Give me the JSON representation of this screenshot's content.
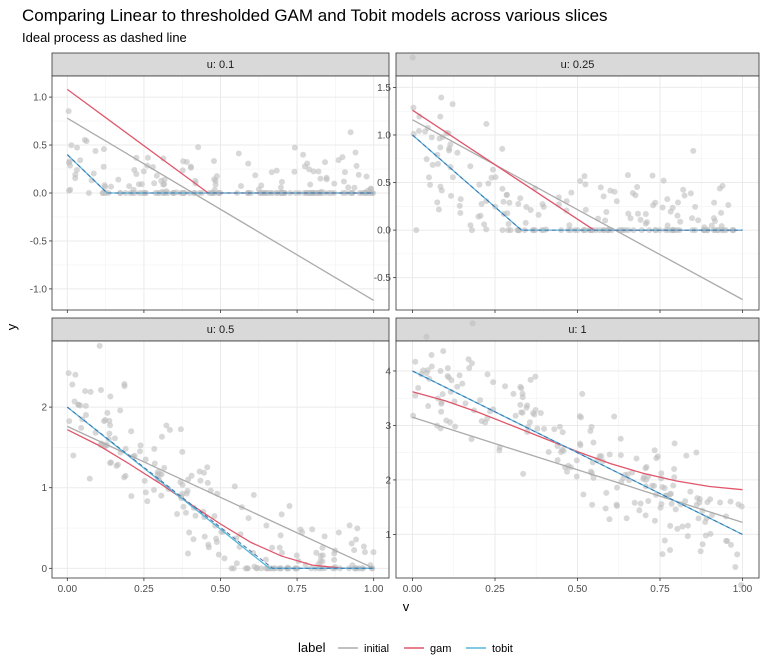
{
  "title": "Comparing Linear to thresholded GAM and Tobit models across various slices",
  "subtitle": "Ideal process as dashed line",
  "colors": {
    "initial": "#ABABAB",
    "gam": "#E0566B",
    "tobit": "#56B8DC",
    "ideal": "#4A6FA5",
    "points": "#BEBEBE"
  },
  "chart_data": {
    "type": "line",
    "xlabel": "v",
    "ylabel": "y",
    "grid": true,
    "legend": {
      "title": "label",
      "position": "bottom",
      "entries": [
        "initial",
        "gam",
        "tobit"
      ]
    },
    "x_ticks": [
      "0.00",
      "0.25",
      "0.50",
      "0.75",
      "1.00"
    ],
    "panels": [
      {
        "strip": "u: 0.1",
        "u": 0.1,
        "xlim": [
          -0.05,
          1.05
        ],
        "ylim": [
          -1.22,
          1.22
        ],
        "y_ticks": [
          -1.0,
          -0.5,
          0.0,
          0.5,
          1.0
        ],
        "y_tick_labels": [
          "-1.0",
          "-0.5",
          "0.0",
          "0.5",
          "1.0"
        ],
        "series": [
          {
            "name": "initial",
            "x": [
              0,
              1
            ],
            "y": [
              0.78,
              -1.12
            ]
          },
          {
            "name": "gam",
            "x": [
              0,
              0.46,
              1
            ],
            "y": [
              1.08,
              0.0,
              0.0
            ]
          },
          {
            "name": "tobit",
            "x": [
              0,
              0.13,
              1
            ],
            "y": [
              0.4,
              0.0,
              0.0
            ]
          }
        ],
        "ideal": {
          "x": [
            0,
            0.13,
            1
          ],
          "y": [
            0.4,
            0.0,
            0.0
          ]
        }
      },
      {
        "strip": "u: 0.25",
        "u": 0.25,
        "xlim": [
          -0.05,
          1.05
        ],
        "ylim": [
          -0.84,
          1.62
        ],
        "y_ticks": [
          -0.5,
          0.0,
          0.5,
          1.0,
          1.5
        ],
        "y_tick_labels": [
          "-0.5",
          "0.0",
          "0.5",
          "1.0",
          "1.5"
        ],
        "series": [
          {
            "name": "initial",
            "x": [
              0,
              1
            ],
            "y": [
              1.16,
              -0.73
            ]
          },
          {
            "name": "gam",
            "x": [
              0,
              0.55,
              1
            ],
            "y": [
              1.26,
              0.0,
              0.0
            ]
          },
          {
            "name": "tobit",
            "x": [
              0,
              0.33,
              1
            ],
            "y": [
              1.0,
              0.0,
              0.0
            ]
          }
        ],
        "ideal": {
          "x": [
            0,
            0.33,
            1
          ],
          "y": [
            1.0,
            0.0,
            0.0
          ]
        }
      },
      {
        "strip": "u: 0.5",
        "u": 0.5,
        "xlim": [
          -0.05,
          1.05
        ],
        "ylim": [
          -0.12,
          2.82
        ],
        "y_ticks": [
          0,
          1,
          2
        ],
        "y_tick_labels": [
          "0",
          "1",
          "2"
        ],
        "series": [
          {
            "name": "initial",
            "x": [
              0,
              1
            ],
            "y": [
              1.76,
              0.0
            ]
          },
          {
            "name": "gam",
            "x": [
              0,
              0.1,
              0.2,
              0.3,
              0.4,
              0.5,
              0.6,
              0.7,
              0.8,
              0.9,
              1.0
            ],
            "y": [
              1.72,
              1.53,
              1.3,
              1.06,
              0.8,
              0.55,
              0.32,
              0.15,
              0.04,
              0.0,
              0.0
            ]
          },
          {
            "name": "tobit",
            "x": [
              0,
              0.66,
              1
            ],
            "y": [
              2.0,
              0.0,
              0.0
            ]
          }
        ],
        "ideal": {
          "x": [
            0,
            0.67,
            1
          ],
          "y": [
            2.0,
            0.0,
            0.0
          ]
        }
      },
      {
        "strip": "u: 1",
        "u": 1,
        "xlim": [
          -0.05,
          1.05
        ],
        "ylim": [
          0.2,
          4.55
        ],
        "y_ticks": [
          1,
          2,
          3,
          4
        ],
        "y_tick_labels": [
          "1",
          "2",
          "3",
          "4"
        ],
        "series": [
          {
            "name": "initial",
            "x": [
              0,
              1
            ],
            "y": [
              3.15,
              1.22
            ]
          },
          {
            "name": "gam",
            "x": [
              0,
              0.1,
              0.2,
              0.3,
              0.4,
              0.5,
              0.6,
              0.7,
              0.8,
              0.9,
              1.0
            ],
            "y": [
              3.62,
              3.45,
              3.24,
              3.0,
              2.76,
              2.52,
              2.3,
              2.12,
              1.98,
              1.88,
              1.82
            ]
          },
          {
            "name": "tobit",
            "x": [
              0,
              1
            ],
            "y": [
              4.0,
              1.0
            ]
          }
        ],
        "ideal": {
          "x": [
            0,
            1
          ],
          "y": [
            4.0,
            1.0
          ]
        }
      }
    ]
  }
}
